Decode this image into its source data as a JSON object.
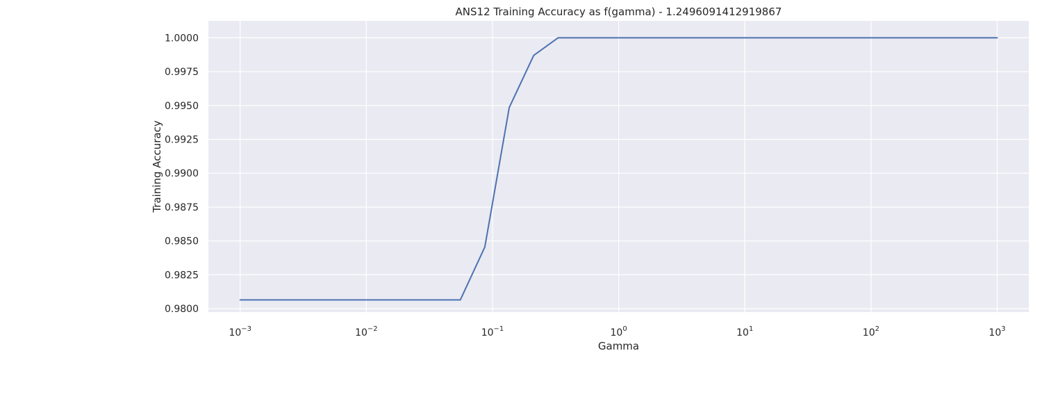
{
  "chart_data": {
    "type": "line",
    "title": "ANS12 Training Accuracy as f(gamma) - 1.2496091412919867",
    "xlabel": "Gamma",
    "ylabel": "Training Accuracy",
    "xscale": "log",
    "xlim": [
      0.00056,
      1780
    ],
    "ylim": [
      0.97975,
      1.00125
    ],
    "x_ticks": [
      {
        "base": "10",
        "exp": "−3",
        "value": 0.001
      },
      {
        "base": "10",
        "exp": "−2",
        "value": 0.01
      },
      {
        "base": "10",
        "exp": "−1",
        "value": 0.1
      },
      {
        "base": "10",
        "exp": "0",
        "value": 1
      },
      {
        "base": "10",
        "exp": "1",
        "value": 10
      },
      {
        "base": "10",
        "exp": "2",
        "value": 100
      },
      {
        "base": "10",
        "exp": "3",
        "value": 1000
      }
    ],
    "y_ticks": [
      {
        "label": "0.9800",
        "value": 0.98
      },
      {
        "label": "0.9825",
        "value": 0.9825
      },
      {
        "label": "0.9850",
        "value": 0.985
      },
      {
        "label": "0.9875",
        "value": 0.9875
      },
      {
        "label": "0.9900",
        "value": 0.99
      },
      {
        "label": "0.9925",
        "value": 0.9925
      },
      {
        "label": "0.9950",
        "value": 0.995
      },
      {
        "label": "0.9975",
        "value": 0.9975
      },
      {
        "label": "1.0000",
        "value": 1.0
      }
    ],
    "grid": true,
    "series": [
      {
        "color": "#4c72b0",
        "points": [
          [
            0.001,
            0.98065
          ],
          [
            0.0025,
            0.98065
          ],
          [
            0.0063,
            0.98065
          ],
          [
            0.0158,
            0.98065
          ],
          [
            0.0398,
            0.98065
          ],
          [
            0.0556,
            0.98065
          ],
          [
            0.0869,
            0.98455
          ],
          [
            0.1357,
            0.99485
          ],
          [
            0.2121,
            0.9987
          ],
          [
            0.3314,
            1.0
          ],
          [
            1,
            1.0
          ],
          [
            10,
            1.0
          ],
          [
            100,
            1.0
          ],
          [
            1000,
            1.0
          ]
        ]
      }
    ]
  },
  "colors": {
    "plot_background": "#eaeaf2",
    "grid": "#ffffff",
    "line": "#4c72b0"
  }
}
